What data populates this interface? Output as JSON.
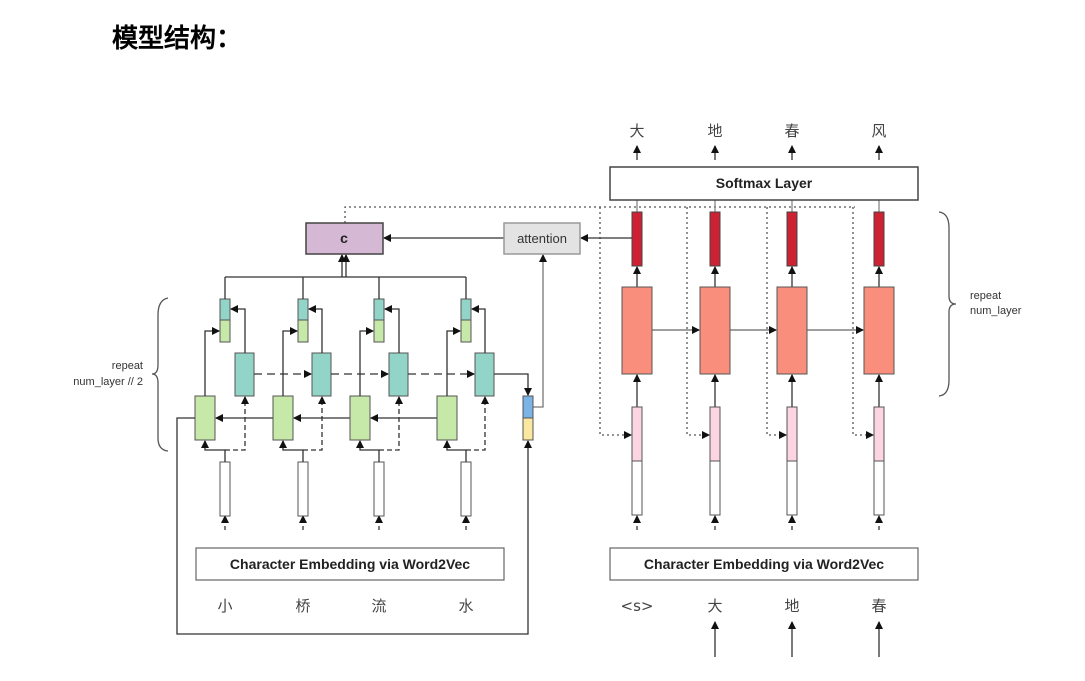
{
  "title": "模型结构：",
  "encoder": {
    "embedding_label": "Character Embedding via Word2Vec",
    "input_chars": [
      "小",
      "桥",
      "流",
      "水"
    ],
    "repeat_label_line1": "repeat",
    "repeat_label_line2": "num_layer // 2",
    "context_label": "c",
    "attention_label": "attention"
  },
  "decoder": {
    "embedding_label": "Character Embedding via Word2Vec",
    "input_chars": [
      "<s>",
      "大",
      "地",
      "春"
    ],
    "output_chars": [
      "大",
      "地",
      "春",
      "风"
    ],
    "softmax_label": "Softmax Layer",
    "repeat_label_line1": "repeat",
    "repeat_label_line2": "num_layer"
  },
  "colors": {
    "context": "#d5b8d4",
    "attention": "#e3e3e3",
    "forward_lstm": "#c6e8a8",
    "backward_lstm": "#93d4c8",
    "decoder_lstm": "#f98e7c",
    "decoder_output": "#cc2233",
    "decoder_input": "#fbd6e2",
    "state_blue": "#7ab4e4",
    "state_yellow": "#fbe8a0"
  }
}
